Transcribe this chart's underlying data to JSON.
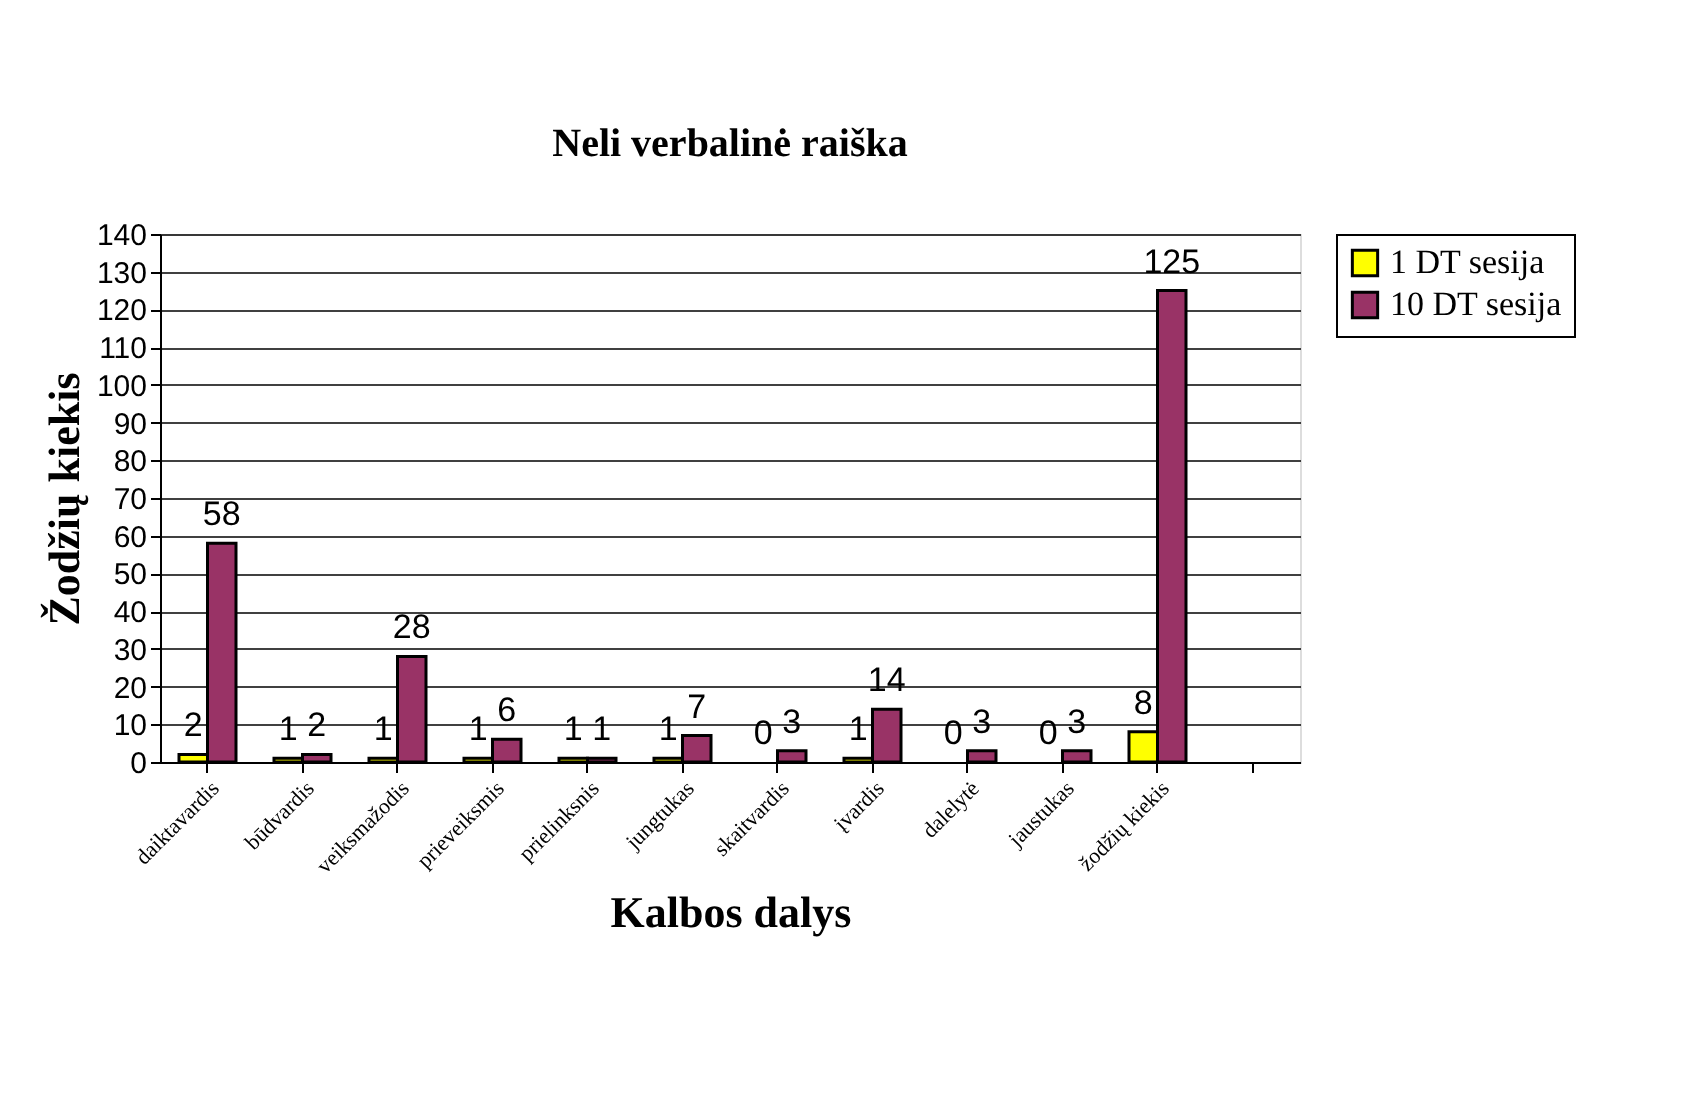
{
  "chart_data": {
    "type": "bar",
    "title": "Neli verbalinė raiška",
    "xlabel": "Kalbos dalys",
    "ylabel": "Žodžių kiekis",
    "categories": [
      "daiktavardis",
      "būdvardis",
      "veiksmažodis",
      "prieveiksmis",
      "prielinksnis",
      "jungtukas",
      "skaitvardis",
      "įvardis",
      "dalelytė",
      "jaustukas",
      "žodžių kiekis",
      null
    ],
    "series": [
      {
        "name": "1 DT sesija",
        "color": "#ffff00",
        "values": [
          2,
          1,
          1,
          1,
          1,
          1,
          0,
          1,
          0,
          0,
          8,
          null
        ]
      },
      {
        "name": "10 DT sesija",
        "color": "#993366",
        "values": [
          58,
          2,
          28,
          6,
          1,
          7,
          3,
          14,
          3,
          3,
          125,
          null
        ]
      }
    ],
    "ylim": [
      0,
      140
    ],
    "yticks": [
      0,
      10,
      20,
      30,
      40,
      50,
      60,
      70,
      80,
      90,
      100,
      110,
      120,
      130,
      140
    ],
    "grid": "y",
    "legend": "right",
    "data_labels": true
  }
}
